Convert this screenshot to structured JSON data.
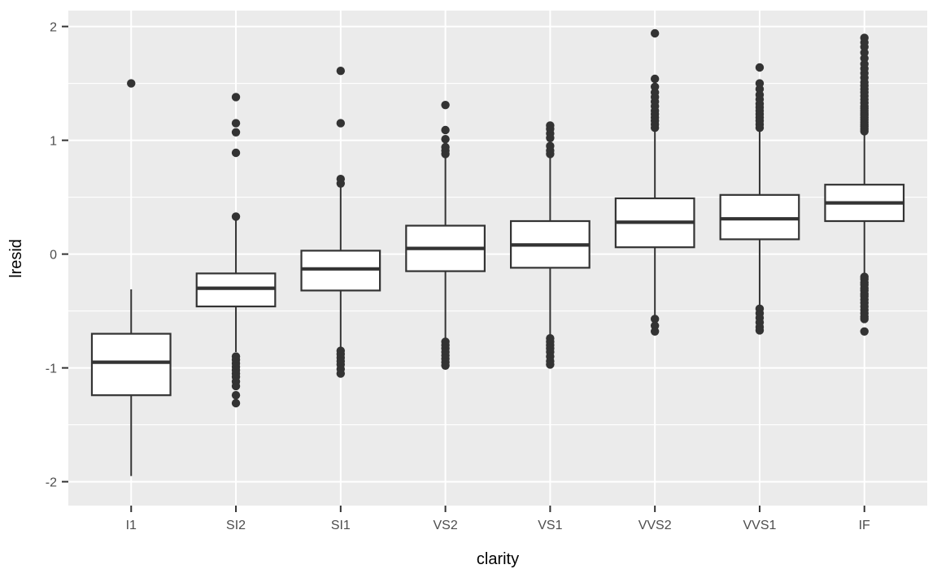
{
  "figure": {
    "background": "#ffffff"
  },
  "chart_data": {
    "type": "boxplot",
    "title": "",
    "xlabel": "clarity",
    "ylabel": "lresid",
    "categories": [
      "I1",
      "SI2",
      "SI1",
      "VS2",
      "VS1",
      "VVS2",
      "VVS1",
      "IF"
    ],
    "ylim": [
      -2.21,
      2.14
    ],
    "yticks": [
      -2,
      -1,
      0,
      1,
      2
    ],
    "ytick_labels": [
      "-2",
      "-1",
      "0",
      "1",
      "2"
    ],
    "yticks_minor": [
      -1.5,
      -0.5,
      0.5,
      1.5
    ],
    "grid": true,
    "legend": "none",
    "boxes": [
      {
        "category": "I1",
        "q1": -1.24,
        "median": -0.95,
        "q3": -0.7,
        "whisker_low": -1.95,
        "whisker_high": -0.31,
        "outliers_high": [
          1.5
        ],
        "outliers_low": []
      },
      {
        "category": "SI2",
        "q1": -0.46,
        "median": -0.3,
        "q3": -0.17,
        "whisker_low": -0.86,
        "whisker_high": 0.32,
        "outliers_high": [
          0.33,
          0.89,
          1.07,
          1.15,
          1.38
        ],
        "outliers_low": [
          -0.9,
          -0.93,
          -0.96,
          -0.99,
          -1.02,
          -1.05,
          -1.08,
          -1.12,
          -1.16,
          -1.24,
          -1.31
        ]
      },
      {
        "category": "SI1",
        "q1": -0.32,
        "median": -0.13,
        "q3": 0.03,
        "whisker_low": -0.82,
        "whisker_high": 0.6,
        "outliers_high": [
          0.62,
          0.66,
          1.15,
          1.61
        ],
        "outliers_low": [
          -0.85,
          -0.88,
          -0.91,
          -0.94,
          -0.97,
          -1.01,
          -1.05
        ]
      },
      {
        "category": "VS2",
        "q1": -0.15,
        "median": 0.05,
        "q3": 0.25,
        "whisker_low": -0.74,
        "whisker_high": 0.85,
        "outliers_high": [
          0.88,
          0.91,
          0.94,
          1.01,
          1.09,
          1.31
        ],
        "outliers_low": [
          -0.77,
          -0.8,
          -0.83,
          -0.86,
          -0.89,
          -0.92,
          -0.95,
          -0.98
        ]
      },
      {
        "category": "VS1",
        "q1": -0.12,
        "median": 0.08,
        "q3": 0.29,
        "whisker_low": -0.71,
        "whisker_high": 0.86,
        "outliers_high": [
          0.88,
          0.91,
          0.95,
          1.02,
          1.06,
          1.1,
          1.13
        ],
        "outliers_low": [
          -0.74,
          -0.77,
          -0.8,
          -0.83,
          -0.86,
          -0.9,
          -0.94,
          -0.97
        ]
      },
      {
        "category": "VVS2",
        "q1": 0.06,
        "median": 0.28,
        "q3": 0.49,
        "whisker_low": -0.54,
        "whisker_high": 1.1,
        "outliers_high": [
          1.11,
          1.14,
          1.17,
          1.2,
          1.23,
          1.26,
          1.3,
          1.34,
          1.38,
          1.42,
          1.47,
          1.54,
          1.94
        ],
        "outliers_low": [
          -0.57,
          -0.63,
          -0.68
        ]
      },
      {
        "category": "VVS1",
        "q1": 0.13,
        "median": 0.31,
        "q3": 0.52,
        "whisker_low": -0.45,
        "whisker_high": 1.1,
        "outliers_high": [
          1.11,
          1.14,
          1.17,
          1.2,
          1.23,
          1.26,
          1.29,
          1.32,
          1.36,
          1.4,
          1.45,
          1.5,
          1.64
        ],
        "outliers_low": [
          -0.48,
          -0.52,
          -0.56,
          -0.6,
          -0.64,
          -0.67
        ]
      },
      {
        "category": "IF",
        "q1": 0.29,
        "median": 0.45,
        "q3": 0.61,
        "whisker_low": -0.17,
        "whisker_high": 1.07,
        "outliers_high": [
          1.08,
          1.1,
          1.12,
          1.14,
          1.16,
          1.18,
          1.2,
          1.22,
          1.24,
          1.26,
          1.28,
          1.3,
          1.33,
          1.36,
          1.39,
          1.42,
          1.45,
          1.48,
          1.51,
          1.55,
          1.59,
          1.63,
          1.67,
          1.72,
          1.77,
          1.82,
          1.86,
          1.9
        ],
        "outliers_low": [
          -0.2,
          -0.22,
          -0.25,
          -0.27,
          -0.3,
          -0.32,
          -0.35,
          -0.37,
          -0.4,
          -0.43,
          -0.46,
          -0.49,
          -0.52,
          -0.55,
          -0.57,
          -0.68
        ]
      }
    ]
  },
  "colors": {
    "panel_background": "#ebebeb",
    "gridline": "#ffffff",
    "box_stroke": "#333333",
    "box_fill": "#ffffff",
    "outlier": "#333333",
    "tick_mark": "#333333",
    "tick_label": "#4d4d4d",
    "axis_title": "#000000"
  }
}
